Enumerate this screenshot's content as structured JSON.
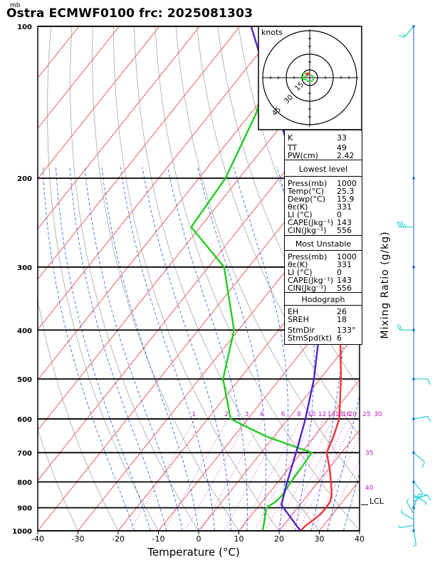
{
  "title": "Ostra ECMWF0100 frc: 2025081303",
  "pressure_unit": "mb",
  "hodograph": {
    "units_label": "knots",
    "ring_labels": [
      "15",
      "30",
      "45"
    ]
  },
  "indices": {
    "rows": [
      {
        "label": "K",
        "value": "33"
      },
      {
        "label": "TT",
        "value": "49"
      },
      {
        "label": "PW(cm)",
        "value": "2.42"
      }
    ]
  },
  "lowest_level": {
    "header": "Lowest level",
    "rows": [
      {
        "label": "Press(mb)",
        "value": "1000"
      },
      {
        "label": "Temp(°C)",
        "value": "25.3"
      },
      {
        "label": "Dewp(°C)",
        "value": "15.9"
      },
      {
        "label": "θε(K)",
        "value": "331"
      },
      {
        "label": "LI (°C)",
        "value": "0"
      },
      {
        "label": "CAPE(Jkg⁻¹)",
        "value": "143"
      },
      {
        "label": "CIN(Jkg⁻¹)",
        "value": "556"
      }
    ]
  },
  "most_unstable": {
    "header": "Most Unstable",
    "rows": [
      {
        "label": "Press(mb)",
        "value": "1000"
      },
      {
        "label": "θε(K)",
        "value": "331"
      },
      {
        "label": "LI (°C)",
        "value": "0"
      },
      {
        "label": "CAPE(Jkg⁻¹)",
        "value": "143"
      },
      {
        "label": "CIN(Jkg⁻¹)",
        "value": "556"
      }
    ]
  },
  "hodograph_stats": {
    "header": "Hodograph",
    "rows": [
      {
        "label": "EH",
        "value": "26"
      },
      {
        "label": "SREH",
        "value": "18"
      },
      {
        "label": "StmDir",
        "value": "133°"
      },
      {
        "label": "StmSpd(kt)",
        "value": "6"
      }
    ]
  },
  "colors": {
    "temperature": "#ee3333",
    "dewpoint": "#22cc22",
    "parcel": "#5522cc",
    "isotherm": "#ee3333",
    "dry_adiabat": "#999999",
    "moist_adiabat": "#2255ee",
    "mixing_ratio": "#bb22bb",
    "wind": "#11cccc"
  },
  "chart_data": {
    "type": "line",
    "subtype": "skew-T log-P diagram",
    "xlabel": "Temperature (°C)",
    "ylabel": "Mixing Ratio (g/kg)",
    "x_ticks": [
      -40,
      -30,
      -20,
      -10,
      0,
      10,
      20,
      30,
      40
    ],
    "xlim": [
      -40,
      40
    ],
    "y_scale": "log",
    "ylim": [
      1000,
      100
    ],
    "y_ticks": [
      1000,
      900,
      800,
      700,
      600,
      500,
      400,
      300,
      200,
      100
    ],
    "mixing_ratio_labels": [
      "1",
      "2",
      "3",
      "4",
      "6",
      "8",
      "10",
      "12",
      "14",
      "16",
      "18",
      "20",
      "25",
      "30"
    ],
    "moist_adiabat_labels": [
      "35",
      "40"
    ],
    "lcl_label": "LCL",
    "lcl_pressure": 888,
    "series": [
      {
        "name": "Temperature",
        "role": "temperature",
        "points": [
          [
            1000,
            25.3
          ],
          [
            975,
            25.6
          ],
          [
            950,
            26.4
          ],
          [
            925,
            27.0
          ],
          [
            900,
            27.1
          ],
          [
            875,
            26.9
          ],
          [
            850,
            26.0
          ],
          [
            800,
            23.2
          ],
          [
            750,
            20.0
          ],
          [
            700,
            16.3
          ],
          [
            650,
            14.8
          ],
          [
            600,
            12.7
          ],
          [
            500,
            5.2
          ],
          [
            400,
            -4.7
          ],
          [
            350,
            -11.9
          ],
          [
            300,
            -20.5
          ],
          [
            250,
            -30.6
          ],
          [
            200,
            -40.8
          ],
          [
            150,
            -52.3
          ],
          [
            100,
            -65.3
          ]
        ]
      },
      {
        "name": "Dewpoint",
        "role": "dewpoint",
        "points": [
          [
            1000,
            15.9
          ],
          [
            950,
            14.2
          ],
          [
            925,
            13.2
          ],
          [
            900,
            12.3
          ],
          [
            875,
            13.4
          ],
          [
            850,
            13.7
          ],
          [
            800,
            13.2
          ],
          [
            750,
            13.0
          ],
          [
            700,
            12.6
          ],
          [
            650,
            -2.0
          ],
          [
            600,
            -14.3
          ],
          [
            500,
            -24.1
          ],
          [
            400,
            -31.1
          ],
          [
            300,
            -46.1
          ],
          [
            250,
            -62.2
          ],
          [
            200,
            -63.4
          ],
          [
            150,
            -68.5
          ],
          [
            100,
            -78.4
          ]
        ]
      },
      {
        "name": "Parcel",
        "role": "parcel",
        "points": [
          [
            1000,
            25.3
          ],
          [
            900,
            16.5
          ],
          [
            888,
            15.4
          ],
          [
            800,
            12.3
          ],
          [
            700,
            8.7
          ],
          [
            600,
            4.3
          ],
          [
            500,
            -1.5
          ],
          [
            400,
            -9.8
          ],
          [
            300,
            -23.2
          ],
          [
            200,
            -45.4
          ],
          [
            100,
            -87.2
          ]
        ]
      }
    ],
    "wind_barbs": [
      {
        "p": 1000,
        "dir": 170,
        "spd": 5
      },
      {
        "p": 975,
        "dir": 260,
        "spd": 5
      },
      {
        "p": 950,
        "dir": 300,
        "spd": 5
      },
      {
        "p": 925,
        "dir": 330,
        "spd": 5
      },
      {
        "p": 900,
        "dir": 20,
        "spd": 5
      },
      {
        "p": 875,
        "dir": 60,
        "spd": 5
      },
      {
        "p": 860,
        "dir": 80,
        "spd": 10
      },
      {
        "p": 850,
        "dir": 120,
        "spd": 5
      },
      {
        "p": 800,
        "dir": 140,
        "spd": 5
      },
      {
        "p": 700,
        "dir": 130,
        "spd": 10
      },
      {
        "p": 600,
        "dir": 80,
        "spd": 10
      },
      {
        "p": 500,
        "dir": 90,
        "spd": 10
      },
      {
        "p": 400,
        "dir": 270,
        "spd": 20
      },
      {
        "p": 250,
        "dir": 270,
        "spd": 35
      },
      {
        "p": 100,
        "dir": 220,
        "spd": 15
      }
    ]
  }
}
